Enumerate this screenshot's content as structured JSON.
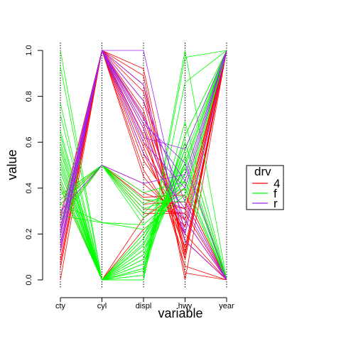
{
  "chart_data": {
    "type": "line",
    "chart_kind": "parallel-coordinates",
    "xlabel": "variable",
    "ylabel": "value",
    "categories": [
      "cty",
      "cyl",
      "displ",
      "hwy",
      "year"
    ],
    "ylim": [
      0,
      1
    ],
    "yticks": [
      "0.0",
      "0.2",
      "0.4",
      "0.6",
      "0.8",
      "1.0"
    ],
    "grid": "vertical dotted lines at each variable",
    "legend": {
      "title": "drv",
      "placement": "right",
      "entries": [
        {
          "label": "4",
          "color": "#ff0000"
        },
        {
          "label": "f",
          "color": "#00ff00"
        },
        {
          "label": "r",
          "color": "#a020f0"
        }
      ]
    },
    "series": [
      {
        "group": "4",
        "values": [
          0.23,
          1.0,
          0.82,
          0.12,
          1.0
        ]
      },
      {
        "group": "4",
        "values": [
          0.19,
          1.0,
          0.71,
          0.17,
          0.0
        ]
      },
      {
        "group": "4",
        "values": [
          0.12,
          1.0,
          0.74,
          0.11,
          1.0
        ]
      },
      {
        "group": "4",
        "values": [
          0.28,
          1.0,
          0.6,
          0.23,
          1.0
        ]
      },
      {
        "group": "4",
        "values": [
          0.16,
          1.0,
          0.66,
          0.06,
          0.0
        ]
      },
      {
        "group": "4",
        "values": [
          0.09,
          1.0,
          0.78,
          0.14,
          1.0
        ]
      },
      {
        "group": "4",
        "values": [
          0.21,
          1.0,
          0.55,
          0.2,
          0.0
        ]
      },
      {
        "group": "4",
        "values": [
          0.14,
          1.0,
          0.63,
          0.09,
          1.0
        ]
      },
      {
        "group": "4",
        "values": [
          0.0,
          1.0,
          0.89,
          0.0,
          1.0
        ]
      },
      {
        "group": "4",
        "values": [
          0.05,
          1.0,
          0.85,
          0.03,
          0.0
        ]
      },
      {
        "group": "4",
        "values": [
          0.3,
          0.5,
          0.38,
          0.31,
          1.0
        ]
      },
      {
        "group": "4",
        "values": [
          0.35,
          0.5,
          0.33,
          0.34,
          0.0
        ]
      },
      {
        "group": "4",
        "values": [
          0.26,
          0.5,
          0.42,
          0.26,
          1.0
        ]
      },
      {
        "group": "4",
        "values": [
          0.33,
          0.5,
          0.29,
          0.29,
          1.0
        ]
      },
      {
        "group": "4",
        "values": [
          0.37,
          0.5,
          0.36,
          0.37,
          0.0
        ]
      },
      {
        "group": "4",
        "values": [
          0.42,
          0.0,
          0.27,
          0.4,
          1.0
        ]
      },
      {
        "group": "4",
        "values": [
          0.4,
          0.0,
          0.22,
          0.37,
          0.0
        ]
      },
      {
        "group": "4",
        "values": [
          0.16,
          1.0,
          0.48,
          0.2,
          1.0
        ]
      },
      {
        "group": "4",
        "values": [
          0.23,
          1.0,
          0.52,
          0.26,
          0.0
        ]
      },
      {
        "group": "4",
        "values": [
          0.19,
          1.0,
          0.45,
          0.23,
          1.0
        ]
      },
      {
        "group": "4",
        "values": [
          0.07,
          1.0,
          0.92,
          0.09,
          1.0
        ]
      },
      {
        "group": "4",
        "values": [
          0.12,
          1.0,
          0.58,
          0.14,
          1.0
        ]
      },
      {
        "group": "4",
        "values": [
          0.28,
          0.5,
          0.31,
          0.29,
          0.0
        ]
      },
      {
        "group": "4",
        "values": [
          0.33,
          0.5,
          0.35,
          0.31,
          1.0
        ]
      },
      {
        "group": "4",
        "values": [
          0.21,
          1.0,
          0.68,
          0.17,
          0.0
        ]
      },
      {
        "group": "f",
        "values": [
          0.47,
          0.0,
          0.09,
          0.51,
          1.0
        ]
      },
      {
        "group": "f",
        "values": [
          0.51,
          0.0,
          0.11,
          0.54,
          0.0
        ]
      },
      {
        "group": "f",
        "values": [
          0.56,
          0.0,
          0.05,
          0.57,
          1.0
        ]
      },
      {
        "group": "f",
        "values": [
          0.6,
          0.0,
          0.07,
          0.6,
          0.0
        ]
      },
      {
        "group": "f",
        "values": [
          0.65,
          0.0,
          0.02,
          0.63,
          1.0
        ]
      },
      {
        "group": "f",
        "values": [
          0.72,
          0.0,
          0.04,
          0.69,
          0.0
        ]
      },
      {
        "group": "f",
        "values": [
          0.77,
          0.0,
          0.0,
          0.86,
          1.0
        ]
      },
      {
        "group": "f",
        "values": [
          1.0,
          0.0,
          0.02,
          1.0,
          0.0
        ]
      },
      {
        "group": "f",
        "values": [
          0.93,
          0.0,
          0.0,
          0.97,
          1.0
        ]
      },
      {
        "group": "f",
        "values": [
          0.44,
          0.0,
          0.13,
          0.46,
          1.0
        ]
      },
      {
        "group": "f",
        "values": [
          0.49,
          0.0,
          0.16,
          0.49,
          0.0
        ]
      },
      {
        "group": "f",
        "values": [
          0.42,
          0.0,
          0.18,
          0.51,
          1.0
        ]
      },
      {
        "group": "f",
        "values": [
          0.53,
          0.0,
          0.11,
          0.57,
          1.0
        ]
      },
      {
        "group": "f",
        "values": [
          0.58,
          0.0,
          0.09,
          0.6,
          0.0
        ]
      },
      {
        "group": "f",
        "values": [
          0.4,
          0.0,
          0.2,
          0.43,
          0.0
        ]
      },
      {
        "group": "f",
        "values": [
          0.35,
          0.5,
          0.24,
          0.4,
          1.0
        ]
      },
      {
        "group": "f",
        "values": [
          0.33,
          0.5,
          0.27,
          0.43,
          0.0
        ]
      },
      {
        "group": "f",
        "values": [
          0.37,
          0.5,
          0.29,
          0.46,
          1.0
        ]
      },
      {
        "group": "f",
        "values": [
          0.3,
          0.5,
          0.31,
          0.37,
          1.0
        ]
      },
      {
        "group": "f",
        "values": [
          0.28,
          0.5,
          0.33,
          0.4,
          0.0
        ]
      },
      {
        "group": "f",
        "values": [
          0.26,
          0.5,
          0.35,
          0.34,
          1.0
        ]
      },
      {
        "group": "f",
        "values": [
          0.33,
          0.25,
          0.24,
          0.4,
          0.0
        ]
      },
      {
        "group": "f",
        "values": [
          0.28,
          0.25,
          0.22,
          0.37,
          1.0
        ]
      },
      {
        "group": "f",
        "values": [
          0.47,
          0.0,
          0.15,
          0.49,
          0.0
        ]
      },
      {
        "group": "f",
        "values": [
          0.51,
          0.0,
          0.13,
          0.54,
          1.0
        ]
      },
      {
        "group": "f",
        "values": [
          0.56,
          0.0,
          0.07,
          0.51,
          0.0
        ]
      },
      {
        "group": "f",
        "values": [
          0.63,
          0.0,
          0.05,
          0.63,
          1.0
        ]
      },
      {
        "group": "f",
        "values": [
          0.44,
          0.0,
          0.18,
          0.46,
          1.0
        ]
      },
      {
        "group": "f",
        "values": [
          0.37,
          0.5,
          0.38,
          0.43,
          0.0
        ]
      },
      {
        "group": "f",
        "values": [
          0.4,
          0.0,
          0.2,
          0.49,
          1.0
        ]
      },
      {
        "group": "r",
        "values": [
          0.16,
          1.0,
          0.66,
          0.2,
          1.0
        ]
      },
      {
        "group": "r",
        "values": [
          0.19,
          1.0,
          0.72,
          0.26,
          0.0
        ]
      },
      {
        "group": "r",
        "values": [
          0.12,
          1.0,
          1.0,
          0.2,
          1.0
        ]
      },
      {
        "group": "r",
        "values": [
          0.21,
          1.0,
          0.78,
          0.34,
          0.0
        ]
      },
      {
        "group": "r",
        "values": [
          0.26,
          1.0,
          0.6,
          0.4,
          1.0
        ]
      },
      {
        "group": "r",
        "values": [
          0.23,
          1.0,
          0.55,
          0.31,
          0.0
        ]
      },
      {
        "group": "r",
        "values": [
          0.3,
          0.5,
          0.42,
          0.46,
          1.0
        ]
      },
      {
        "group": "r",
        "values": [
          0.14,
          1.0,
          0.85,
          0.17,
          0.0
        ]
      },
      {
        "group": "r",
        "values": [
          0.19,
          1.0,
          0.62,
          0.57,
          1.0
        ]
      },
      {
        "group": "r",
        "values": [
          0.16,
          1.0,
          0.68,
          0.51,
          0.0
        ]
      },
      {
        "group": "r",
        "values": [
          0.21,
          1.0,
          0.7,
          0.43,
          1.0
        ]
      }
    ]
  }
}
